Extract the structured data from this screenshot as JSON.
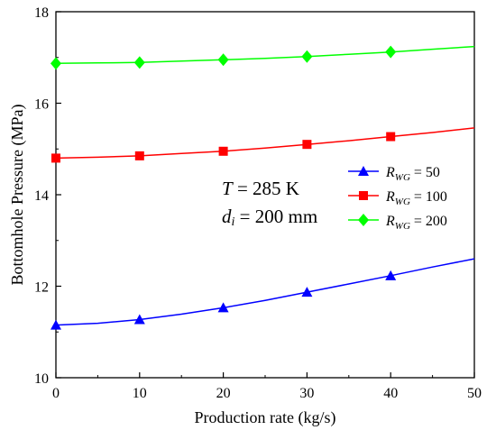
{
  "chart_data": {
    "type": "line",
    "title": "",
    "xlabel": "Production rate (kg/s)",
    "ylabel": "Bottomhole Pressure (MPa)",
    "xlim": [
      0,
      50
    ],
    "ylim": [
      10,
      18
    ],
    "x_ticks": [
      "0",
      "10",
      "20",
      "30",
      "40",
      "50"
    ],
    "y_ticks": [
      "10",
      "12",
      "14",
      "16",
      "18"
    ],
    "grid": false,
    "legend_position": "center-right",
    "legend_var": "R",
    "legend_sub": "WG",
    "series": [
      {
        "name": "R_WG = 50",
        "value_label": "= 50",
        "color": "#0000ff",
        "marker": "triangle",
        "x": [
          0,
          10,
          20,
          30,
          40
        ],
        "y": [
          11.15,
          11.27,
          11.53,
          11.87,
          12.23
        ],
        "curve_x": [
          0,
          5,
          10,
          15,
          20,
          25,
          30,
          35,
          40,
          45,
          50
        ],
        "curve_y": [
          11.15,
          11.19,
          11.27,
          11.39,
          11.53,
          11.69,
          11.87,
          12.05,
          12.23,
          12.42,
          12.6
        ]
      },
      {
        "name": "R_WG = 100",
        "value_label": "= 100",
        "color": "#ff0000",
        "marker": "square",
        "x": [
          0,
          10,
          20,
          30,
          40
        ],
        "y": [
          14.8,
          14.85,
          14.95,
          15.1,
          15.27
        ],
        "curve_x": [
          0,
          5,
          10,
          15,
          20,
          25,
          30,
          35,
          40,
          45,
          50
        ],
        "curve_y": [
          14.8,
          14.82,
          14.85,
          14.9,
          14.95,
          15.02,
          15.1,
          15.18,
          15.27,
          15.36,
          15.46
        ]
      },
      {
        "name": "R_WG = 200",
        "value_label": "= 200",
        "color": "#00ff00",
        "marker": "diamond",
        "x": [
          0,
          10,
          20,
          30,
          40
        ],
        "y": [
          16.87,
          16.89,
          16.95,
          17.02,
          17.12
        ],
        "curve_x": [
          0,
          5,
          10,
          15,
          20,
          25,
          30,
          35,
          40,
          45,
          50
        ],
        "curve_y": [
          16.87,
          16.88,
          16.89,
          16.92,
          16.95,
          16.98,
          17.02,
          17.07,
          17.12,
          17.18,
          17.24
        ]
      }
    ]
  },
  "annotation": {
    "temp_var": "T",
    "temp_text": " = 285 K",
    "dia_var": "d",
    "dia_sub": "i",
    "dia_text": " = 200 mm"
  }
}
